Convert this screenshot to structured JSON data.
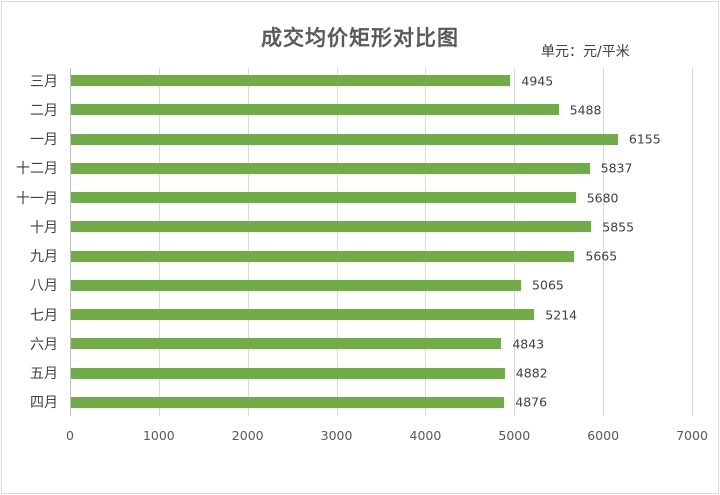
{
  "chart_data": {
    "type": "bar",
    "orientation": "horizontal",
    "title": "成交均价矩形对比图",
    "unit_label": "单元：元/平米",
    "xlabel": "",
    "ylabel": "",
    "xlim": [
      0,
      7000
    ],
    "xticks": [
      "0",
      "1000",
      "2000",
      "3000",
      "4000",
      "5000",
      "6000",
      "7000"
    ],
    "grid": true,
    "legend": null,
    "bar_color": "#70ad47",
    "categories": [
      "三月",
      "二月",
      "一月",
      "十二月",
      "十一月",
      "十月",
      "九月",
      "八月",
      "七月",
      "六月",
      "五月",
      "四月"
    ],
    "values": [
      4945,
      5488,
      6155,
      5837,
      5680,
      5855,
      5665,
      5065,
      5214,
      4843,
      4882,
      4876
    ],
    "value_labels": [
      "4945",
      "5488",
      "6155",
      "5837",
      "5680",
      "5855",
      "5665",
      "5065",
      "5214",
      "4843",
      "4882",
      "4876"
    ]
  }
}
